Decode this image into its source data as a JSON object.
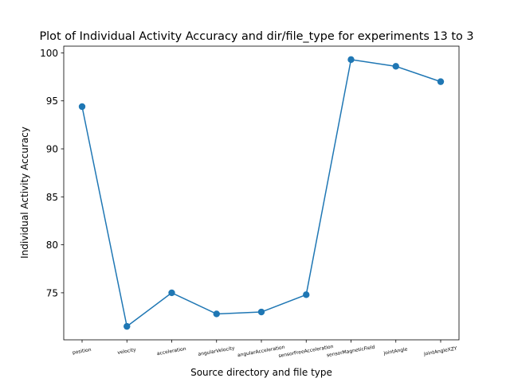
{
  "chart_data": {
    "type": "line",
    "title": "Plot of Individual Activity Accuracy and dir/file_type for experiments 13 to 3",
    "xlabel": "Source directory and file type",
    "ylabel": "Individual Activity Accuracy",
    "categories": [
      "position",
      "velocity",
      "acceleration",
      "angularVelocity",
      "angularAcceleration",
      "sensorFreeAcceleration",
      "sensorMagneticField",
      "jointAngle",
      "jointAngleXZY"
    ],
    "series": [
      {
        "values": [
          94.4,
          71.5,
          75.0,
          72.8,
          73.0,
          74.8,
          99.3,
          98.6,
          97.0
        ]
      }
    ],
    "yticks": [
      75,
      80,
      85,
      90,
      95,
      100
    ],
    "ylim": [
      70.1,
      100.7
    ],
    "grid": false,
    "color": "#1f77b4",
    "markers": "circle"
  }
}
